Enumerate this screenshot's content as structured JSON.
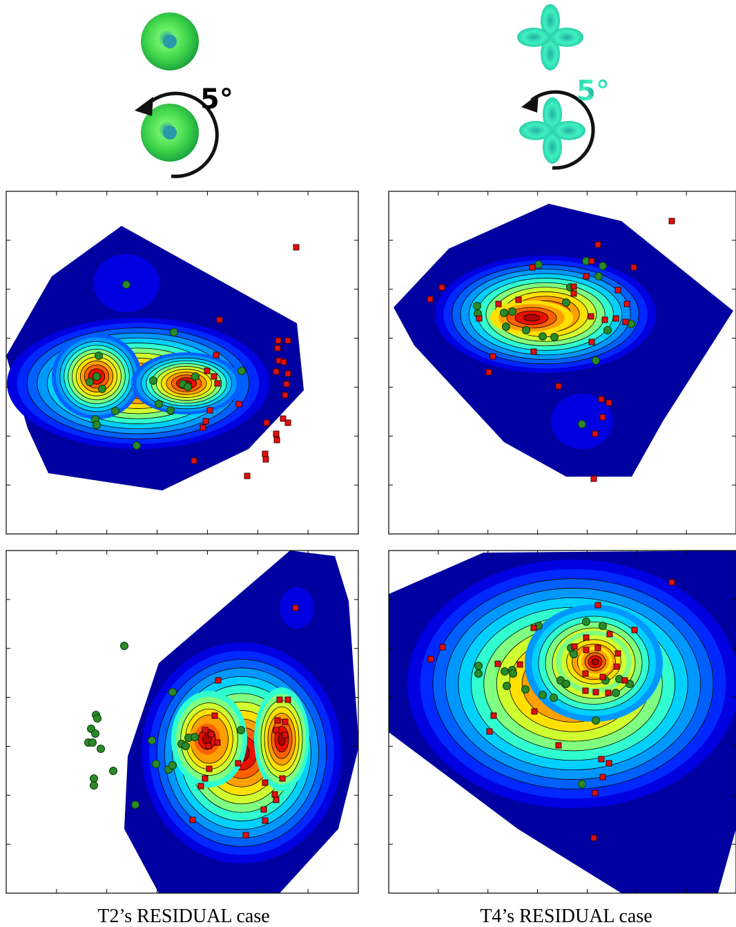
{
  "figure": {
    "rotation_labels": [
      "5°",
      "5°"
    ],
    "captions": [
      "T2’s RESIDUAL case",
      "T4’s RESIDUAL case"
    ]
  }
}
